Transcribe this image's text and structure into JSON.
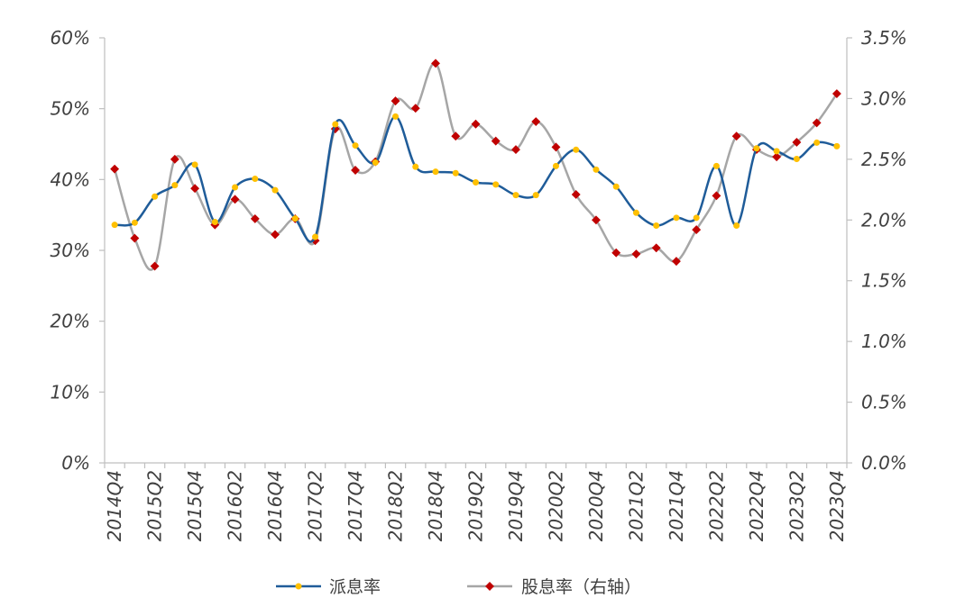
{
  "chart_data": {
    "type": "line",
    "categories": [
      "2014Q4",
      "2015Q1",
      "2015Q2",
      "2015Q3",
      "2015Q4",
      "2016Q1",
      "2016Q2",
      "2016Q3",
      "2016Q4",
      "2017Q1",
      "2017Q2",
      "2017Q3",
      "2017Q4",
      "2018Q1",
      "2018Q2",
      "2018Q3",
      "2018Q4",
      "2019Q1",
      "2019Q2",
      "2019Q3",
      "2019Q4",
      "2020Q1",
      "2020Q2",
      "2020Q3",
      "2020Q4",
      "2021Q1",
      "2021Q2",
      "2021Q3",
      "2021Q4",
      "2022Q1",
      "2022Q2",
      "2022Q3",
      "2022Q4",
      "2023Q1",
      "2023Q2",
      "2023Q3",
      "2023Q4"
    ],
    "x_tick_labels": [
      "2014Q4",
      "2015Q2",
      "2015Q4",
      "2016Q2",
      "2016Q4",
      "2017Q2",
      "2017Q4",
      "2018Q2",
      "2018Q4",
      "2019Q2",
      "2019Q4",
      "2020Q2",
      "2020Q4",
      "2021Q2",
      "2021Q4",
      "2022Q2",
      "2022Q4",
      "2023Q2",
      "2023Q4"
    ],
    "y_left": {
      "range": [
        0,
        60
      ],
      "ticks": [
        "0%",
        "10%",
        "20%",
        "30%",
        "40%",
        "50%",
        "60%"
      ]
    },
    "y_right": {
      "range": [
        0,
        3.5
      ],
      "ticks": [
        "0.0%",
        "0.5%",
        "1.0%",
        "1.5%",
        "2.0%",
        "2.5%",
        "3.0%",
        "3.5%"
      ]
    },
    "series": [
      {
        "name": "派息率",
        "axis": "left",
        "color": "#1f5c99",
        "marker_color": "#ffc000",
        "values": [
          33.6,
          33.9,
          37.6,
          39.2,
          42.1,
          34.0,
          38.9,
          40.1,
          38.5,
          34.5,
          31.9,
          47.8,
          44.8,
          42.4,
          48.9,
          41.8,
          41.1,
          40.9,
          39.6,
          39.3,
          37.8,
          37.8,
          41.9,
          44.2,
          41.4,
          39.0,
          35.3,
          33.5,
          34.6,
          34.6,
          41.9,
          33.5,
          44.4,
          44.0,
          42.9,
          45.2,
          44.7
        ]
      },
      {
        "name": "股息率（右轴）",
        "axis": "right",
        "color": "#a6a6a6",
        "marker_color": "#c00000",
        "values": [
          2.42,
          1.85,
          1.62,
          2.5,
          2.26,
          1.96,
          2.17,
          2.01,
          1.88,
          2.01,
          1.83,
          2.75,
          2.41,
          2.48,
          2.98,
          2.92,
          3.29,
          2.69,
          2.79,
          2.65,
          2.58,
          2.81,
          2.6,
          2.21,
          2.0,
          1.73,
          1.72,
          1.77,
          1.66,
          1.92,
          2.2,
          2.69,
          2.58,
          2.52,
          2.64,
          2.8,
          3.04
        ]
      }
    ],
    "legend_position": "bottom"
  },
  "legend": {
    "item1": "派息率",
    "item2": "股息率（右轴）"
  }
}
